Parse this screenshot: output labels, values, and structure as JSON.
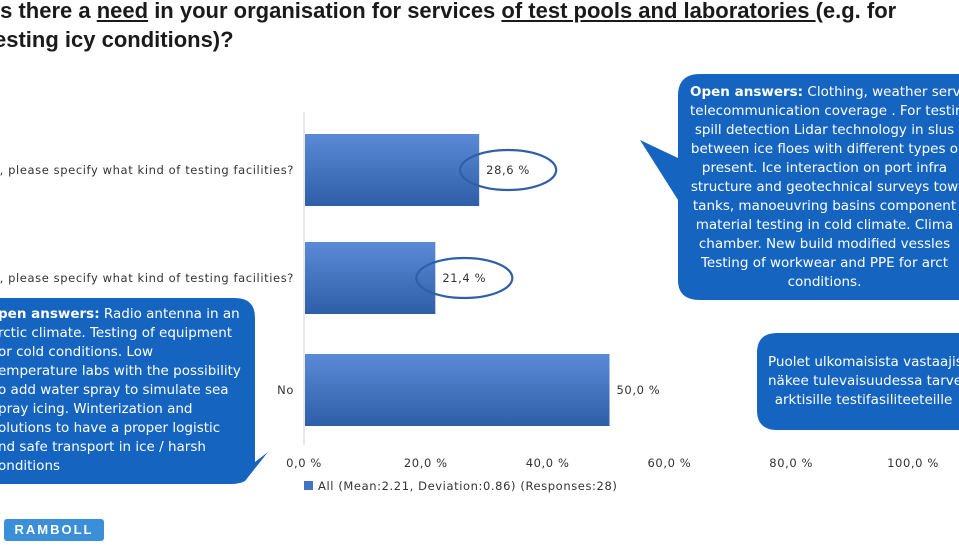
{
  "title": {
    "line1_pre": "Is there a ",
    "line1_need": "need",
    "line1_mid": " in your organisation for services ",
    "line1_link": "of test pools and laboratories ",
    "line1_post": "(e.g. for",
    "line2": "esting icy conditions)?"
  },
  "chart_data": {
    "type": "bar",
    "orientation": "horizontal",
    "categories": [
      "es, please specify what kind of testing facilities?",
      "pe, please specify what kind of testing facilities?",
      "No"
    ],
    "series": [
      {
        "name": "All (Mean:2.21, Deviation:0.86) (Responses:28)",
        "values": [
          28.6,
          21.4,
          50.0
        ]
      }
    ],
    "data_labels": [
      "28,6 %",
      "21,4 %",
      "50,0 %"
    ],
    "xlim": [
      0,
      100
    ],
    "xticks": [
      "0,0 %",
      "20,0 %",
      "40,0 %",
      "60,0 %",
      "80,0 %",
      "100,0 %"
    ],
    "grid": false,
    "legend_position": "bottom",
    "bar_color": "#4472c4"
  },
  "callouts": {
    "left": {
      "heading": "pen answers:",
      "lines": [
        "Radio antenna in an",
        "rctic climate. Testing of equipment",
        "or cold conditions. Low",
        "emperature labs with the possibility",
        "o add water spray to simulate sea",
        "pray icing. Winterization and",
        "olutions to have a proper logistic",
        "nd safe transport in ice / harsh",
        "onditions"
      ]
    },
    "right_top": {
      "heading": "Open answers:",
      "lines": [
        "Clothing, weather servi",
        "telecommunication coverage . For testin",
        "spill detection Lidar technology in slus",
        "between ice floes with different types o",
        "present. Ice interaction on port infra",
        "structure and geotechnical surveys tow",
        "tanks, manoeuvring basins component",
        "material testing in cold climate. Clima",
        "chamber. New build modified vessles",
        "Testing of workwear and PPE for arct",
        "conditions."
      ]
    },
    "right_bottom": {
      "lines": [
        "Puolet ulkomaisista vastaajis",
        "näkee tulevaisuudessa tarve",
        "arktisille testifasiliteeteille"
      ]
    }
  },
  "logo_text": "RAMBOLL",
  "colors": {
    "callout": "#1565c0",
    "bar": "#4472c4",
    "ellipse": "#2e5fa8"
  }
}
